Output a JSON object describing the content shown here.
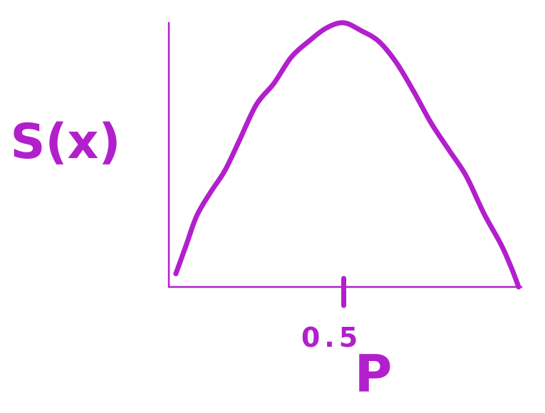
{
  "colors": {
    "ink": "#b21fcc"
  },
  "chart_data": {
    "type": "line",
    "title": "",
    "xlabel": "P",
    "ylabel": "S(x)",
    "x_ticks": [
      {
        "value": 0.5,
        "label": "0.5"
      }
    ],
    "xlim": [
      0,
      1
    ],
    "ylim": [
      0,
      1
    ],
    "grid": false,
    "legend": "none",
    "series": [
      {
        "x": [
          0.02,
          0.05,
          0.08,
          0.12,
          0.16,
          0.2,
          0.25,
          0.3,
          0.35,
          0.4,
          0.45,
          0.5,
          0.55,
          0.6,
          0.65,
          0.7,
          0.75,
          0.8,
          0.85,
          0.9,
          0.95,
          0.98,
          1.0
        ],
        "y": [
          0.05,
          0.16,
          0.27,
          0.36,
          0.44,
          0.55,
          0.69,
          0.77,
          0.87,
          0.93,
          0.98,
          1.0,
          0.97,
          0.93,
          0.85,
          0.74,
          0.62,
          0.52,
          0.42,
          0.28,
          0.16,
          0.07,
          0.0
        ]
      }
    ]
  }
}
